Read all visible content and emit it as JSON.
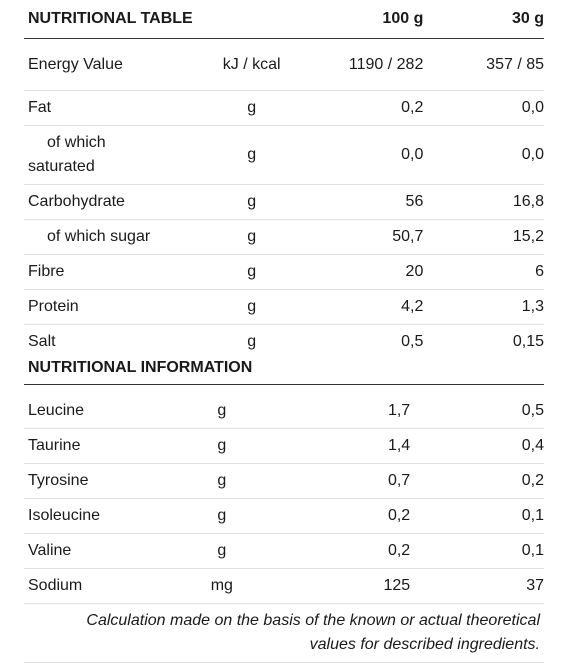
{
  "nutritional_table": {
    "title": "NUTRITIONAL TABLE",
    "col_100g": "100 g",
    "col_30g": "30 g",
    "rows": [
      {
        "name": "Energy Value",
        "unit": "kJ / kcal",
        "per100": "1190 / 282",
        "per30": "357 / 85"
      },
      {
        "name": "Fat",
        "unit": "g",
        "per100": "0,2",
        "per30": "0,0"
      },
      {
        "name_line1": "of which",
        "name_line2": "saturated",
        "unit": "g",
        "per100": "0,0",
        "per30": "0,0"
      },
      {
        "name": "Carbohydrate",
        "unit": "g",
        "per100": "56",
        "per30": "16,8"
      },
      {
        "name": "of which sugar",
        "unit": "g",
        "per100": "50,7",
        "per30": "15,2"
      },
      {
        "name": "Fibre",
        "unit": "g",
        "per100": "20",
        "per30": "6"
      },
      {
        "name": "Protein",
        "unit": "g",
        "per100": "4,2",
        "per30": "1,3"
      },
      {
        "name": "Salt",
        "unit": "g",
        "per100": "0,5",
        "per30": "0,15"
      }
    ]
  },
  "nutritional_information": {
    "title": "NUTRITIONAL INFORMATION",
    "rows": [
      {
        "name": "Leucine",
        "unit": "g",
        "per100": "1,7",
        "per30": "0,5"
      },
      {
        "name": "Taurine",
        "unit": "g",
        "per100": "1,4",
        "per30": "0,4"
      },
      {
        "name": "Tyrosine",
        "unit": "g",
        "per100": "0,7",
        "per30": "0,2"
      },
      {
        "name": "Isoleucine",
        "unit": "g",
        "per100": "0,2",
        "per30": "0,1"
      },
      {
        "name": "Valine",
        "unit": "g",
        "per100": "0,2",
        "per30": "0,1"
      },
      {
        "name": "Sodium",
        "unit": "mg",
        "per100": "125",
        "per30": "37"
      }
    ]
  },
  "footnote": {
    "line1": "Calculation made on the basis of the known or actual theoretical",
    "line2": "values for described ingredients."
  }
}
